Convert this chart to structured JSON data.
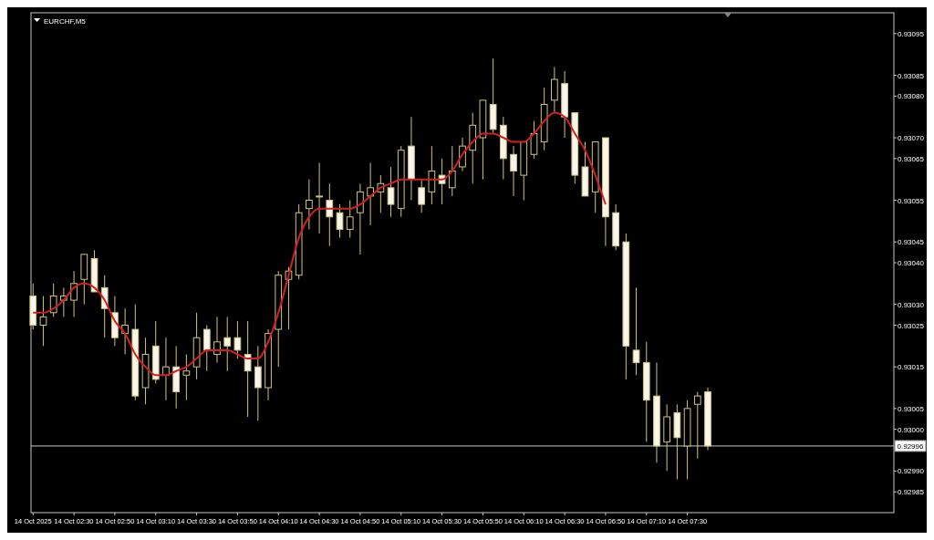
{
  "chart_data": {
    "type": "candlestick",
    "title": "EURCHF,M5",
    "x": [
      "2025-10-14T02:10",
      "2025-10-14T02:15",
      "2025-10-14T02:20",
      "2025-10-14T02:25",
      "2025-10-14T02:30",
      "2025-10-14T02:35",
      "2025-10-14T02:40",
      "2025-10-14T02:45",
      "2025-10-14T02:50",
      "2025-10-14T02:55",
      "2025-10-14T03:00",
      "2025-10-14T03:05",
      "2025-10-14T03:10",
      "2025-10-14T03:15",
      "2025-10-14T03:20",
      "2025-10-14T03:25",
      "2025-10-14T03:30",
      "2025-10-14T03:35",
      "2025-10-14T03:40",
      "2025-10-14T03:45",
      "2025-10-14T03:50",
      "2025-10-14T03:55",
      "2025-10-14T04:00",
      "2025-10-14T04:05",
      "2025-10-14T04:10",
      "2025-10-14T04:15",
      "2025-10-14T04:20",
      "2025-10-14T04:25",
      "2025-10-14T04:30",
      "2025-10-14T04:35",
      "2025-10-14T04:40",
      "2025-10-14T04:45",
      "2025-10-14T04:50",
      "2025-10-14T04:55",
      "2025-10-14T05:00",
      "2025-10-14T05:05",
      "2025-10-14T05:10",
      "2025-10-14T05:15",
      "2025-10-14T05:20",
      "2025-10-14T05:25",
      "2025-10-14T05:30",
      "2025-10-14T05:35",
      "2025-10-14T05:40",
      "2025-10-14T05:45",
      "2025-10-14T05:50",
      "2025-10-14T05:55",
      "2025-10-14T06:00",
      "2025-10-14T06:05",
      "2025-10-14T06:10",
      "2025-10-14T06:15",
      "2025-10-14T06:20",
      "2025-10-14T06:25",
      "2025-10-14T06:30",
      "2025-10-14T06:35",
      "2025-10-14T06:40",
      "2025-10-14T06:45",
      "2025-10-14T06:50",
      "2025-10-14T06:55",
      "2025-10-14T07:00",
      "2025-10-14T07:05",
      "2025-10-14T07:10",
      "2025-10-14T07:15",
      "2025-10-14T07:20",
      "2025-10-14T07:25",
      "2025-10-14T07:30",
      "2025-10-14T07:35",
      "2025-10-14T07:40"
    ],
    "series": [
      {
        "type": "candlestick",
        "color": "#cfc380",
        "ohlc": [
          [
            0.93032,
            0.93035,
            0.93024,
            0.93025
          ],
          [
            0.93025,
            0.93032,
            0.9302,
            0.93027
          ],
          [
            0.93028,
            0.93035,
            0.93027,
            0.93032
          ],
          [
            0.93031,
            0.93034,
            0.93027,
            0.93032
          ],
          [
            0.93031,
            0.93038,
            0.93027,
            0.93035
          ],
          [
            0.93036,
            0.93042,
            0.9303,
            0.93042
          ],
          [
            0.93041,
            0.93043,
            0.93033,
            0.93033
          ],
          [
            0.93034,
            0.93037,
            0.93022,
            0.93029
          ],
          [
            0.93028,
            0.93032,
            0.9302,
            0.93022
          ],
          [
            0.93023,
            0.93029,
            0.93018,
            0.93025
          ],
          [
            0.93024,
            0.9303,
            0.93007,
            0.93008
          ],
          [
            0.9301,
            0.93022,
            0.93006,
            0.93018
          ],
          [
            0.9302,
            0.93026,
            0.93011,
            0.93012
          ],
          [
            0.93013,
            0.93022,
            0.93007,
            0.93015
          ],
          [
            0.93015,
            0.9302,
            0.93005,
            0.93009
          ],
          [
            0.93013,
            0.93018,
            0.93007,
            0.93014
          ],
          [
            0.93015,
            0.93028,
            0.93012,
            0.93022
          ],
          [
            0.93024,
            0.93025,
            0.93014,
            0.93019
          ],
          [
            0.93018,
            0.93027,
            0.93016,
            0.93021
          ],
          [
            0.93022,
            0.93027,
            0.93014,
            0.9302
          ],
          [
            0.93022,
            0.93026,
            0.93017,
            0.93019
          ],
          [
            0.93018,
            0.93026,
            0.93003,
            0.93014
          ],
          [
            0.93015,
            0.9302,
            0.93002,
            0.9301
          ],
          [
            0.9301,
            0.93024,
            0.93007,
            0.93023
          ],
          [
            0.93024,
            0.93038,
            0.93015,
            0.93037
          ],
          [
            0.93036,
            0.93039,
            0.93024,
            0.93038
          ],
          [
            0.93037,
            0.93054,
            0.93036,
            0.93052
          ],
          [
            0.93053,
            0.9306,
            0.93048,
            0.93055
          ],
          [
            0.93056,
            0.93064,
            0.93047,
            0.93056
          ],
          [
            0.93055,
            0.93059,
            0.93044,
            0.93051
          ],
          [
            0.93052,
            0.93054,
            0.93046,
            0.93048
          ],
          [
            0.93048,
            0.93055,
            0.93046,
            0.93051
          ],
          [
            0.93052,
            0.93059,
            0.93042,
            0.93057
          ],
          [
            0.93056,
            0.93064,
            0.93049,
            0.93058
          ],
          [
            0.93057,
            0.93061,
            0.93052,
            0.93059
          ],
          [
            0.93058,
            0.93063,
            0.93051,
            0.93054
          ],
          [
            0.93053,
            0.93068,
            0.93051,
            0.93067
          ],
          [
            0.93068,
            0.93075,
            0.93055,
            0.9306
          ],
          [
            0.93058,
            0.9306,
            0.93052,
            0.93054
          ],
          [
            0.93057,
            0.93068,
            0.93054,
            0.93062
          ],
          [
            0.93061,
            0.93065,
            0.93054,
            0.93059
          ],
          [
            0.93058,
            0.93068,
            0.93056,
            0.93062
          ],
          [
            0.93063,
            0.9307,
            0.93062,
            0.93068
          ],
          [
            0.93067,
            0.93076,
            0.93059,
            0.93073
          ],
          [
            0.9307,
            0.93079,
            0.9306,
            0.93079
          ],
          [
            0.93078,
            0.93089,
            0.93071,
            0.93072
          ],
          [
            0.93073,
            0.93075,
            0.9306,
            0.93065
          ],
          [
            0.93066,
            0.93068,
            0.93056,
            0.93062
          ],
          [
            0.93061,
            0.93069,
            0.93055,
            0.93069
          ],
          [
            0.93066,
            0.93074,
            0.93065,
            0.93071
          ],
          [
            0.93069,
            0.93082,
            0.93067,
            0.93078
          ],
          [
            0.93079,
            0.93087,
            0.93076,
            0.93084
          ],
          [
            0.93083,
            0.93086,
            0.9307,
            0.93075
          ],
          [
            0.93076,
            0.93076,
            0.93059,
            0.93061
          ],
          [
            0.93063,
            0.93069,
            0.93056,
            0.93056
          ],
          [
            0.93057,
            0.93069,
            0.93052,
            0.93069
          ],
          [
            0.9307,
            0.9307,
            0.93044,
            0.93051
          ],
          [
            0.93052,
            0.93054,
            0.93043,
            0.93044
          ],
          [
            0.93045,
            0.93047,
            0.93012,
            0.9302
          ],
          [
            0.93019,
            0.93034,
            0.93013,
            0.93016
          ],
          [
            0.93016,
            0.93021,
            0.92997,
            0.93007
          ],
          [
            0.93008,
            0.93016,
            0.92992,
            0.92996
          ],
          [
            0.92997,
            0.93006,
            0.9299,
            0.93003
          ],
          [
            0.93004,
            0.93006,
            0.92988,
            0.92998
          ],
          [
            0.92996,
            0.93007,
            0.92988,
            0.93005
          ],
          [
            0.93006,
            0.93009,
            0.92993,
            0.93008
          ],
          [
            0.93009,
            0.9301,
            0.92995,
            0.92996
          ]
        ]
      },
      {
        "type": "line",
        "color": "#d42020",
        "values": [
          0.93028,
          0.93028,
          0.93029,
          0.93031,
          0.93034,
          0.93035,
          0.93034,
          0.93031,
          0.93026,
          0.93023,
          0.93018,
          0.93015,
          0.93013,
          0.93013,
          0.93014,
          0.93015,
          0.93017,
          0.93019,
          0.93019,
          0.93019,
          0.93018,
          0.93017,
          0.93017,
          0.93021,
          0.93028,
          0.93037,
          0.93046,
          0.93051,
          0.93053,
          0.93053,
          0.93053,
          0.93053,
          0.93054,
          0.93056,
          0.93058,
          0.93059,
          0.9306,
          0.9306,
          0.9306,
          0.9306,
          0.9306,
          0.93062,
          0.93066,
          0.93069,
          0.93071,
          0.93071,
          0.9307,
          0.93069,
          0.93069,
          0.93071,
          0.93074,
          0.93076,
          0.93075,
          0.93071,
          0.93067,
          0.93061,
          0.93054,
          null,
          null,
          null,
          null,
          null,
          null,
          null,
          null,
          null,
          null
        ]
      }
    ],
    "xlim": [
      "2025-10-14T02:09",
      "2025-10-14T09:11"
    ],
    "xticks": [
      {
        "value": "2025-10-14T02:10",
        "label": "14 Oct 2025"
      },
      {
        "value": "2025-10-14T02:30",
        "label": "14 Oct 02:30"
      },
      {
        "value": "2025-10-14T02:50",
        "label": "14 Oct 02:50"
      },
      {
        "value": "2025-10-14T03:10",
        "label": "14 Oct 03:10"
      },
      {
        "value": "2025-10-14T03:30",
        "label": "14 Oct 03:30"
      },
      {
        "value": "2025-10-14T03:50",
        "label": "14 Oct 03:50"
      },
      {
        "value": "2025-10-14T04:10",
        "label": "14 Oct 04:10"
      },
      {
        "value": "2025-10-14T04:30",
        "label": "14 Oct 04:30"
      },
      {
        "value": "2025-10-14T04:50",
        "label": "14 Oct 04:50"
      },
      {
        "value": "2025-10-14T05:10",
        "label": "14 Oct 05:10"
      },
      {
        "value": "2025-10-14T05:30",
        "label": "14 Oct 05:30"
      },
      {
        "value": "2025-10-14T05:50",
        "label": "14 Oct 05:50"
      },
      {
        "value": "2025-10-14T06:10",
        "label": "14 Oct 06:10"
      },
      {
        "value": "2025-10-14T06:30",
        "label": "14 Oct 06:30"
      },
      {
        "value": "2025-10-14T06:50",
        "label": "14 Oct 06:50"
      },
      {
        "value": "2025-10-14T07:10",
        "label": "14 Oct 07:10"
      },
      {
        "value": "2025-10-14T07:30",
        "label": "14 Oct 07:30"
      }
    ],
    "ylim": [
      0.9298,
      0.931
    ],
    "yticks": [
      0.93095,
      0.93085,
      {
        "value": 0.9308,
        "label": "0.93080"
      },
      {
        "value": 0.9307,
        "label": "0.93070"
      },
      0.93065,
      0.93055,
      0.93045,
      {
        "value": 0.9304,
        "label": "0.93040"
      },
      {
        "value": 0.9303,
        "label": "0.93030"
      },
      0.93025,
      0.93015,
      0.93005,
      {
        "value": 0.93,
        "label": "0.93000"
      },
      {
        "value": 0.9299,
        "label": "0.92990"
      },
      0.92985
    ],
    "ref_lines": [
      {
        "axis": "y",
        "value": 0.92996,
        "label": "0.92996",
        "color": "#c8c8c8"
      }
    ],
    "grid": false
  }
}
